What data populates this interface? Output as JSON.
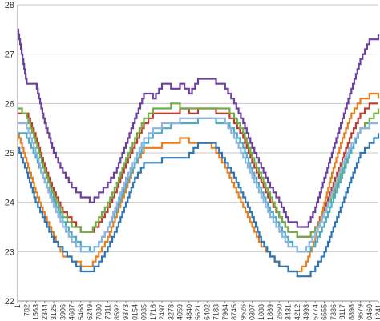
{
  "chart_data": {
    "type": "line",
    "title": "",
    "xlabel": "",
    "ylabel": "",
    "ylim": [
      22,
      28
    ],
    "yticks": [
      "22",
      "23",
      "24",
      "25",
      "26",
      "27",
      "28"
    ],
    "grid": "horizontal",
    "legend": "none",
    "x_tick_labels": [
      "1",
      "782",
      "1563",
      "2344",
      "3125",
      "3906",
      "4687",
      "5468",
      "6249",
      "7030",
      "7811",
      "8592",
      "9373",
      "0154",
      "0935",
      "1716",
      "2497",
      "3278",
      "4059",
      "4840",
      "5621",
      "6402",
      "7183",
      "7964",
      "8745",
      "9526",
      "0307",
      "1088",
      "1869",
      "2650",
      "3431",
      "4212",
      "4993",
      "5774",
      "6555",
      "7336",
      "8117",
      "8898",
      "9679",
      "0460",
      "1241"
    ],
    "series": [
      {
        "color": "#6b3fa0",
        "values": [
          27.5,
          26.4,
          26.4,
          25.6,
          25.0,
          24.6,
          24.3,
          24.1,
          24.0,
          24.2,
          24.4,
          24.7,
          25.2,
          25.7,
          26.2,
          26.1,
          26.4,
          26.3,
          26.4,
          26.2,
          26.5,
          26.5,
          26.4,
          26.3,
          26.0,
          25.6,
          25.1,
          24.7,
          24.3,
          24.0,
          23.6,
          23.5,
          23.5,
          23.9,
          24.5,
          25.1,
          25.7,
          26.3,
          26.9,
          27.3,
          27.4
        ]
      },
      {
        "color": "#c0392b",
        "values": [
          25.8,
          25.8,
          25.3,
          24.7,
          24.2,
          23.8,
          23.6,
          23.4,
          23.4,
          23.6,
          23.9,
          24.3,
          24.8,
          25.2,
          25.6,
          25.8,
          25.8,
          25.8,
          25.9,
          25.8,
          25.9,
          25.9,
          25.8,
          25.8,
          25.6,
          25.3,
          24.8,
          24.4,
          24.0,
          23.7,
          23.4,
          23.3,
          23.3,
          23.5,
          23.9,
          24.4,
          24.9,
          25.4,
          25.8,
          26.0,
          26.0
        ]
      },
      {
        "color": "#70ad47",
        "values": [
          25.9,
          25.7,
          25.2,
          24.6,
          24.1,
          23.7,
          23.5,
          23.4,
          23.4,
          23.7,
          24.0,
          24.4,
          24.9,
          25.3,
          25.7,
          25.9,
          25.9,
          26.0,
          25.9,
          25.9,
          25.9,
          25.9,
          25.9,
          25.9,
          25.7,
          25.4,
          24.9,
          24.5,
          24.1,
          23.7,
          23.4,
          23.3,
          23.3,
          23.5,
          23.8,
          24.2,
          24.7,
          25.1,
          25.5,
          25.7,
          25.9
        ]
      },
      {
        "color": "#e57f1f",
        "values": [
          25.4,
          24.8,
          24.2,
          23.7,
          23.3,
          22.9,
          22.8,
          22.7,
          22.7,
          23.0,
          23.3,
          23.8,
          24.3,
          24.8,
          25.1,
          25.1,
          25.2,
          25.2,
          25.3,
          25.2,
          25.2,
          25.2,
          25.0,
          24.7,
          24.3,
          23.9,
          23.5,
          23.1,
          22.9,
          22.7,
          22.6,
          22.6,
          22.8,
          23.3,
          24.0,
          24.7,
          25.3,
          25.8,
          26.1,
          26.2,
          26.1
        ]
      },
      {
        "color": "#2e75b6",
        "values": [
          25.1,
          24.6,
          24.0,
          23.6,
          23.2,
          23.0,
          22.8,
          22.6,
          22.6,
          22.8,
          23.1,
          23.5,
          24.0,
          24.5,
          24.8,
          24.8,
          24.9,
          24.9,
          24.9,
          25.0,
          25.2,
          25.2,
          25.1,
          24.8,
          24.5,
          24.1,
          23.7,
          23.2,
          22.9,
          22.7,
          22.6,
          22.5,
          22.5,
          22.7,
          23.0,
          23.5,
          24.0,
          24.5,
          25.0,
          25.2,
          25.4
        ]
      },
      {
        "color": "#4bacc6",
        "values": [
          25.4,
          25.3,
          24.9,
          24.4,
          24.0,
          23.6,
          23.3,
          23.1,
          23.0,
          23.2,
          23.5,
          23.9,
          24.4,
          24.8,
          25.2,
          25.4,
          25.5,
          25.6,
          25.6,
          25.6,
          25.7,
          25.7,
          25.6,
          25.6,
          25.4,
          25.1,
          24.6,
          24.2,
          23.8,
          23.5,
          23.2,
          23.0,
          23.0,
          23.2,
          23.6,
          24.1,
          24.6,
          25.1,
          25.5,
          25.6,
          25.6
        ]
      },
      {
        "color": "#8eb4e3",
        "values": [
          25.6,
          25.5,
          25.0,
          24.4,
          23.9,
          23.5,
          23.2,
          23.0,
          23.0,
          23.2,
          23.5,
          24.0,
          24.5,
          24.9,
          25.3,
          25.5,
          25.6,
          25.6,
          25.7,
          25.7,
          25.7,
          25.7,
          25.7,
          25.6,
          25.3,
          24.9,
          24.5,
          24.1,
          23.7,
          23.4,
          23.1,
          23.0,
          23.1,
          23.4,
          23.8,
          24.3,
          24.8,
          25.2,
          25.5,
          25.6,
          25.6
        ]
      }
    ]
  }
}
